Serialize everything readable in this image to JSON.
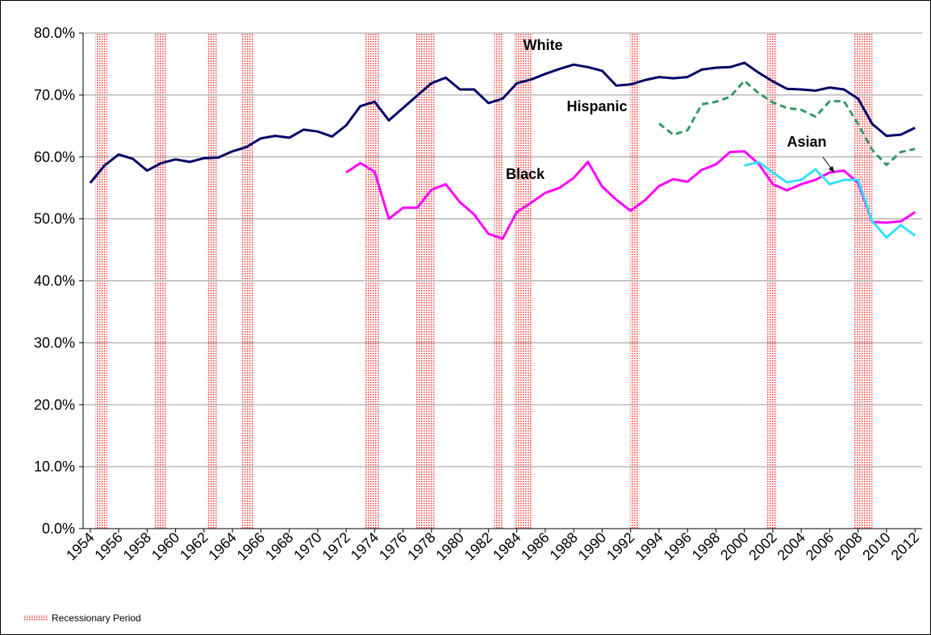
{
  "chart_data": {
    "type": "line",
    "x": [
      1954,
      1955,
      1956,
      1957,
      1958,
      1959,
      1960,
      1961,
      1962,
      1963,
      1964,
      1965,
      1966,
      1967,
      1968,
      1969,
      1970,
      1971,
      1972,
      1973,
      1974,
      1975,
      1976,
      1977,
      1978,
      1979,
      1980,
      1981,
      1982,
      1983,
      1984,
      1985,
      1986,
      1987,
      1988,
      1989,
      1990,
      1991,
      1992,
      1993,
      1994,
      1995,
      1996,
      1997,
      1998,
      1999,
      2000,
      2001,
      2002,
      2003,
      2004,
      2005,
      2006,
      2007,
      2008,
      2009,
      2010,
      2011,
      2012
    ],
    "xlim": [
      1953.5,
      2012.5
    ],
    "xticks": [
      1954,
      1956,
      1958,
      1960,
      1962,
      1964,
      1966,
      1968,
      1970,
      1972,
      1974,
      1976,
      1978,
      1980,
      1982,
      1984,
      1986,
      1988,
      1990,
      1992,
      1994,
      1996,
      1998,
      2000,
      2002,
      2004,
      2006,
      2008,
      2010,
      2012
    ],
    "ylim": [
      0,
      80
    ],
    "yticks": [
      {
        "value": 0,
        "label": "0.0%"
      },
      {
        "value": 10,
        "label": "10.0%"
      },
      {
        "value": 20,
        "label": "20.0%"
      },
      {
        "value": 30,
        "label": "30.0%"
      },
      {
        "value": 40,
        "label": "40.0%"
      },
      {
        "value": 50,
        "label": "50.0%"
      },
      {
        "value": 60,
        "label": "60.0%"
      },
      {
        "value": 70,
        "label": "70.0%"
      },
      {
        "value": 80,
        "label": "80.0%"
      }
    ],
    "grid": true,
    "series": [
      {
        "name": "White",
        "color": "#000066",
        "values": [
          55.8,
          58.6,
          60.4,
          59.7,
          57.8,
          59.0,
          59.6,
          59.2,
          59.8,
          59.9,
          60.9,
          61.6,
          63.0,
          63.4,
          63.1,
          64.4,
          64.1,
          63.3,
          65.1,
          68.2,
          68.9,
          65.9,
          67.9,
          69.9,
          71.9,
          72.8,
          70.9,
          70.9,
          68.7,
          69.4,
          71.9,
          72.5,
          73.4,
          74.2,
          74.9,
          74.5,
          73.9,
          71.5,
          71.7,
          72.4,
          72.9,
          72.7,
          72.9,
          74.1,
          74.4,
          74.5,
          75.2,
          73.6,
          72.2,
          71.0,
          70.9,
          70.7,
          71.2,
          70.9,
          69.4,
          65.3,
          63.4,
          63.6,
          64.7
        ]
      },
      {
        "name": "Hispanic",
        "color": "#339966",
        "dashed": true,
        "values": [
          null,
          null,
          null,
          null,
          null,
          null,
          null,
          null,
          null,
          null,
          null,
          null,
          null,
          null,
          null,
          null,
          null,
          null,
          null,
          null,
          null,
          null,
          null,
          null,
          null,
          null,
          null,
          null,
          null,
          null,
          null,
          null,
          null,
          null,
          null,
          null,
          null,
          null,
          null,
          null,
          65.4,
          63.6,
          64.3,
          68.5,
          68.9,
          69.7,
          72.3,
          70.3,
          68.8,
          67.9,
          67.6,
          66.5,
          69.0,
          69.0,
          65.3,
          61.1,
          58.7,
          60.8,
          61.3
        ]
      },
      {
        "name": "Black",
        "color": "#ff00ff",
        "values": [
          null,
          null,
          null,
          null,
          null,
          null,
          null,
          null,
          null,
          null,
          null,
          null,
          null,
          null,
          null,
          null,
          null,
          null,
          57.5,
          59.0,
          57.6,
          50.0,
          51.8,
          51.8,
          54.7,
          55.6,
          52.7,
          50.7,
          47.6,
          46.8,
          51.1,
          52.6,
          54.2,
          55.0,
          56.6,
          59.2,
          55.2,
          53.1,
          51.3,
          53.0,
          55.3,
          56.4,
          56.0,
          57.9,
          58.8,
          60.8,
          60.9,
          58.9,
          55.6,
          54.6,
          55.6,
          56.3,
          57.5,
          57.8,
          55.8,
          49.5,
          49.4,
          49.6,
          51.1
        ]
      },
      {
        "name": "Asian",
        "color": "#33e0ff",
        "values": [
          null,
          null,
          null,
          null,
          null,
          null,
          null,
          null,
          null,
          null,
          null,
          null,
          null,
          null,
          null,
          null,
          null,
          null,
          null,
          null,
          null,
          null,
          null,
          null,
          null,
          null,
          null,
          null,
          null,
          null,
          null,
          null,
          null,
          null,
          null,
          null,
          null,
          null,
          null,
          null,
          null,
          null,
          null,
          null,
          null,
          null,
          58.6,
          59.2,
          57.5,
          55.9,
          56.3,
          58.0,
          55.6,
          56.3,
          56.3,
          49.6,
          47.0,
          49.0,
          47.3
        ]
      }
    ],
    "recession_label": "Recessionary Period",
    "recessions": [
      [
        1954.35,
        1955.2
      ],
      [
        1958.55,
        1959.4
      ],
      [
        1962.2,
        1962.97
      ],
      [
        1964.67,
        1965.47
      ],
      [
        1973.35,
        1974.3
      ],
      [
        1976.9,
        1978.2
      ],
      [
        1982.4,
        1982.98
      ],
      [
        1983.8,
        1985.1
      ],
      [
        1991.95,
        1992.6
      ],
      [
        2001.6,
        2002.3
      ],
      [
        2007.7,
        2009.0
      ]
    ],
    "recession_color": "#ff3333"
  }
}
